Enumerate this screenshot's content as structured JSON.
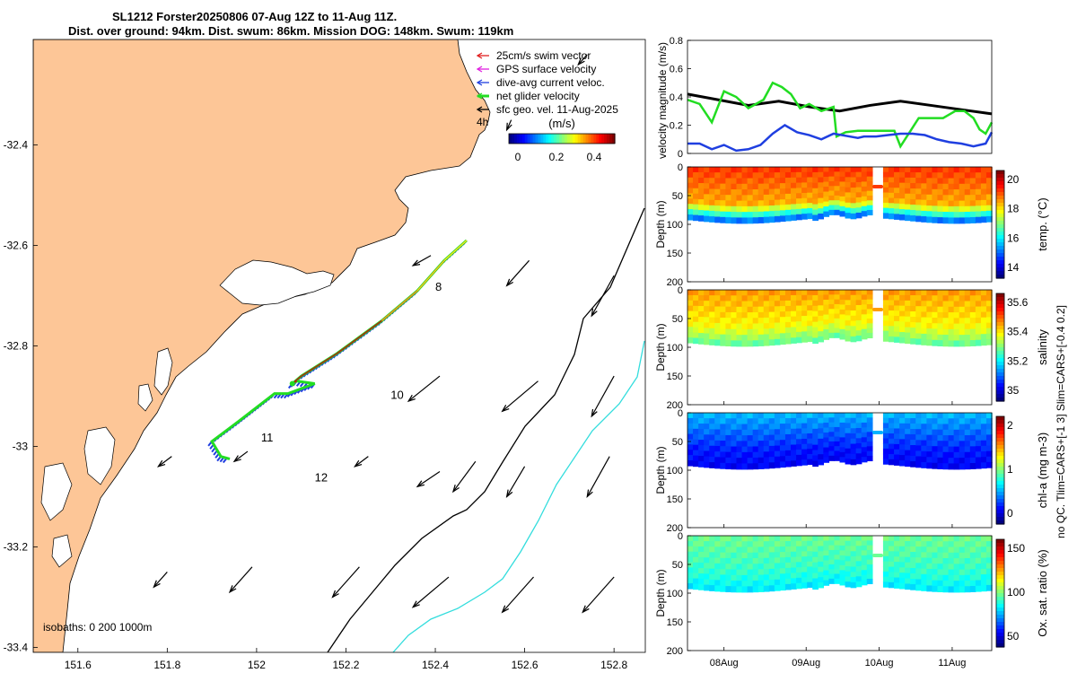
{
  "title": {
    "line1": "SL1212 Forster20250806 07-Aug 12Z to 11-Aug 11Z.",
    "line2": "Dist. over ground: 94km. Dist. swum: 86km. Mission DOG: 148km. Swum: 119km"
  },
  "colors": {
    "land": "#fdc697",
    "track_green": "#22dd22",
    "track_blue": "#1f3fe0",
    "cyan_isobath": "#33dddd",
    "black": "#000000"
  },
  "map": {
    "x_ticks": [
      "151.6",
      "151.8",
      "152",
      "152.2",
      "152.4",
      "152.6",
      "152.8"
    ],
    "x_tick_values": [
      151.6,
      151.8,
      152.0,
      152.2,
      152.4,
      152.6,
      152.8
    ],
    "y_ticks": [
      "-32.4",
      "-32.6",
      "-32.8",
      "-33",
      "-33.2",
      "-33.4"
    ],
    "y_tick_values": [
      -32.4,
      -32.6,
      -32.8,
      -33.0,
      -33.2,
      -33.4
    ],
    "xlim": [
      151.5,
      152.87
    ],
    "ylim": [
      -33.41,
      -32.19
    ],
    "legend": [
      {
        "label": "25cm/s swim vector",
        "icon": "red-arrow-icon"
      },
      {
        "label": "GPS surface velocity",
        "icon": "magenta-arrow-icon"
      },
      {
        "label": "dive-avg current veloc.",
        "icon": "blue-arrow-icon"
      },
      {
        "label": "net glider velocity",
        "icon": "green-arrow-icon"
      },
      {
        "label": "sfc geo. vel. 11-Aug-2025",
        "icon": "black-arrow-icon"
      }
    ],
    "colorbar": {
      "label": "(m/s)",
      "ticks": [
        "0",
        "0.2",
        "0.4"
      ]
    },
    "day_labels": [
      {
        "text": "8",
        "lon": 152.4,
        "lat": -32.69
      },
      {
        "text": "10",
        "lon": 152.3,
        "lat": -32.905
      },
      {
        "text": "11",
        "lon": 152.01,
        "lat": -32.99
      },
      {
        "text": "12",
        "lon": 152.13,
        "lat": -33.07
      }
    ],
    "corner_label": "4h",
    "isobath_note": "isobaths: 0   200  1000m",
    "track": [
      [
        152.47,
        -32.59
      ],
      [
        152.42,
        -32.63
      ],
      [
        152.36,
        -32.69
      ],
      [
        152.28,
        -32.75
      ],
      [
        152.18,
        -32.815
      ],
      [
        152.1,
        -32.86
      ],
      [
        152.08,
        -32.875
      ],
      [
        152.09,
        -32.87
      ],
      [
        152.13,
        -32.875
      ],
      [
        152.07,
        -32.895
      ],
      [
        152.04,
        -32.895
      ],
      [
        151.96,
        -32.95
      ],
      [
        151.9,
        -32.99
      ],
      [
        151.92,
        -33.02
      ],
      [
        151.94,
        -33.025
      ]
    ],
    "current_vectors": [
      [
        152.35,
        -32.64,
        152.39,
        -32.62
      ],
      [
        152.56,
        -32.68,
        152.61,
        -32.63
      ],
      [
        152.75,
        -32.74,
        152.8,
        -32.66
      ],
      [
        152.34,
        -32.91,
        152.41,
        -32.86
      ],
      [
        152.55,
        -32.93,
        152.63,
        -32.87
      ],
      [
        152.75,
        -32.94,
        152.8,
        -32.86
      ],
      [
        152.44,
        -33.09,
        152.49,
        -33.03
      ],
      [
        152.56,
        -33.1,
        152.6,
        -33.04
      ],
      [
        152.74,
        -33.1,
        152.79,
        -33.02
      ],
      [
        152.36,
        -33.08,
        152.41,
        -33.05
      ],
      [
        152.22,
        -33.04,
        152.25,
        -33.02
      ],
      [
        151.95,
        -33.03,
        151.98,
        -33.01
      ],
      [
        151.78,
        -33.04,
        151.81,
        -33.02
      ],
      [
        151.77,
        -33.28,
        151.8,
        -33.25
      ],
      [
        151.94,
        -33.29,
        151.99,
        -33.24
      ],
      [
        152.17,
        -33.3,
        152.23,
        -33.24
      ],
      [
        152.35,
        -33.32,
        152.43,
        -33.26
      ],
      [
        152.55,
        -33.33,
        152.62,
        -33.26
      ],
      [
        152.73,
        -33.33,
        152.8,
        -33.26
      ],
      [
        152.72,
        -32.24,
        152.74,
        -32.22
      ],
      [
        152.56,
        -32.37,
        152.57,
        -32.35
      ]
    ]
  },
  "velocity_panel": {
    "ylabel": "velocity magnitude (m/s)",
    "y_ticks": [
      "0",
      "0.2",
      "0.4",
      "0.6",
      "0.8"
    ],
    "y_tick_values": [
      0,
      0.2,
      0.4,
      0.6,
      0.8
    ],
    "ylim": [
      0,
      0.8
    ],
    "xlim": [
      0,
      100
    ],
    "series": [
      {
        "name": "sfc geo. vel.",
        "color": "#000000",
        "x": [
          0,
          10,
          20,
          30,
          40,
          50,
          60,
          70,
          80,
          90,
          100
        ],
        "y": [
          0.42,
          0.38,
          0.34,
          0.37,
          0.33,
          0.3,
          0.34,
          0.37,
          0.34,
          0.31,
          0.28
        ]
      },
      {
        "name": "net glider velocity",
        "color": "#22dd22",
        "x": [
          0,
          4,
          8,
          12,
          16,
          20,
          25,
          28,
          31,
          34,
          37,
          40,
          44,
          48,
          49,
          52,
          56,
          60,
          66,
          68,
          70,
          76,
          80,
          84,
          88,
          91,
          94,
          96,
          98,
          100
        ],
        "y": [
          0.38,
          0.35,
          0.22,
          0.44,
          0.4,
          0.32,
          0.38,
          0.5,
          0.47,
          0.42,
          0.32,
          0.35,
          0.3,
          0.33,
          0.12,
          0.15,
          0.16,
          0.16,
          0.16,
          0.16,
          0.05,
          0.25,
          0.25,
          0.25,
          0.3,
          0.3,
          0.25,
          0.17,
          0.14,
          0.22
        ]
      },
      {
        "name": "dive-avg current veloc.",
        "color": "#1f3fe0",
        "x": [
          0,
          4,
          8,
          12,
          16,
          20,
          24,
          28,
          32,
          36,
          40,
          44,
          48,
          56,
          58,
          62,
          66,
          70,
          74,
          78,
          82,
          86,
          90,
          94,
          98,
          100
        ],
        "y": [
          0.07,
          0.07,
          0.03,
          0.06,
          0.02,
          0.03,
          0.06,
          0.14,
          0.2,
          0.15,
          0.13,
          0.1,
          0.14,
          0.11,
          0.12,
          0.12,
          0.13,
          0.14,
          0.14,
          0.13,
          0.1,
          0.08,
          0.07,
          0.05,
          0.07,
          0.15
        ]
      }
    ]
  },
  "section_panels": [
    {
      "ylabel": "Depth (m)",
      "cblabel": "temp. (°C)",
      "cb_ticks": [
        "20",
        "18",
        "16",
        "14"
      ],
      "colormap": "jet",
      "c_top": 0.82,
      "c_mid": 0.7,
      "c_bot": 0.25
    },
    {
      "ylabel": "Depth (m)",
      "cblabel": "salinity",
      "cb_ticks": [
        "35.6",
        "35.4",
        "35.2",
        "35"
      ],
      "colormap": "jet",
      "c_top": 0.72,
      "c_mid": 0.62,
      "c_bot": 0.48
    },
    {
      "ylabel": "Depth (m)",
      "cblabel": "chl-a (mg m-3)",
      "cb_ticks": [
        "2",
        "1",
        "0"
      ],
      "colormap": "jet",
      "c_top": 0.3,
      "c_mid": 0.15,
      "c_bot": 0.12
    },
    {
      "ylabel": "Depth (m)",
      "cblabel": "Ox. sat. ratio (%)",
      "cb_ticks": [
        "150",
        "100",
        "50"
      ],
      "colormap": "jet",
      "c_top": 0.48,
      "c_mid": 0.42,
      "c_bot": 0.36
    }
  ],
  "section_depth_ticks": [
    "0",
    "50",
    "100",
    "150",
    "200"
  ],
  "section_depth_values": [
    0,
    50,
    100,
    150,
    200
  ],
  "time_ticks": [
    "08Aug",
    "09Aug",
    "10Aug",
    "11Aug"
  ],
  "time_tick_positions": [
    12,
    39,
    63,
    87
  ],
  "side_note": "no QC. Tlim=CARS+[-1 3] Slim=CARS+[-0.4 0.2]"
}
